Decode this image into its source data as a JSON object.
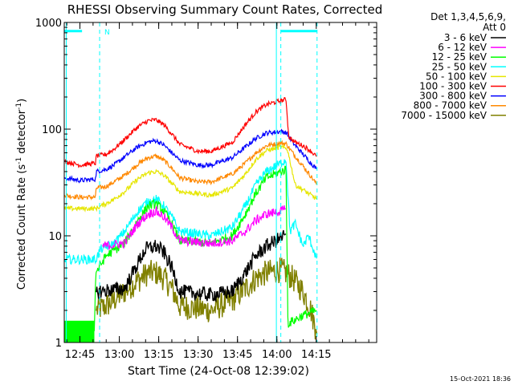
{
  "chart_data": {
    "type": "line",
    "title": "RHESSI Observing Summary Count Rates, Corrected",
    "xlabel": "Start Time (24-Oct-08 12:39:02)",
    "ylabel_main": "Corrected Count Rate (s",
    "ylabel_sup1": "-1",
    "ylabel_mid": " detector",
    "ylabel_sup2": "-1",
    "ylabel_end": ")",
    "yscale": "log",
    "ylim": [
      1,
      1000
    ],
    "xlim_min": [
      39.03,
      158
    ],
    "y_ticks": [
      {
        "value": 1,
        "label": "1"
      },
      {
        "value": 10,
        "label": "10"
      },
      {
        "value": 100,
        "label": "100"
      },
      {
        "value": 1000,
        "label": "1000"
      }
    ],
    "x_ticks": [
      {
        "value": 45,
        "label": "12:45"
      },
      {
        "value": 60,
        "label": "13:00"
      },
      {
        "value": 75,
        "label": "13:15"
      },
      {
        "value": 90,
        "label": "13:30"
      },
      {
        "value": 105,
        "label": "13:45"
      },
      {
        "value": 120,
        "label": "14:00"
      },
      {
        "value": 135,
        "label": "14:15"
      }
    ],
    "legend_header": [
      "Det 1,3,4,5,6,9,",
      "Att 0"
    ],
    "legend_position": "right",
    "footer_stamp": "15-Oct-2021 18:36",
    "night_marker": "N",
    "night_level": 830,
    "night_intervals": [
      [
        39.03,
        45.8
      ],
      [
        121.5,
        135.3
      ]
    ],
    "dashed_time_markers": [
      52.5,
      121.5,
      135.3
    ],
    "solid_time_markers": [
      39.8,
      119.8
    ],
    "series": [
      {
        "name": "3 - 6 keV",
        "color": "#000000",
        "points": [
          [
            51.0,
            3.0
          ],
          [
            62,
            3.2
          ],
          [
            67,
            5.5
          ],
          [
            70,
            7.5
          ],
          [
            74,
            8.0
          ],
          [
            77,
            7.0
          ],
          [
            80,
            5.0
          ],
          [
            83,
            3.0
          ],
          [
            95,
            2.8
          ],
          [
            103,
            3.0
          ],
          [
            108,
            4.5
          ],
          [
            112,
            6.5
          ],
          [
            116,
            8.0
          ],
          [
            121.5,
            9.5
          ],
          [
            123.5,
            10.5
          ]
        ]
      },
      {
        "name": "6 - 12 keV",
        "color": "#ff00ff",
        "points": [
          [
            53.5,
            8.0
          ],
          [
            62,
            8.5
          ],
          [
            67,
            13
          ],
          [
            71,
            16
          ],
          [
            74,
            17
          ],
          [
            77,
            15
          ],
          [
            80,
            12
          ],
          [
            83,
            9
          ],
          [
            95,
            8.5
          ],
          [
            103,
            9
          ],
          [
            108,
            11
          ],
          [
            112,
            14
          ],
          [
            116,
            16
          ],
          [
            121.5,
            17
          ],
          [
            123.5,
            18
          ]
        ]
      },
      {
        "name": "12 - 25 keV",
        "color": "#00ff00",
        "points": [
          [
            39.03,
            1.25
          ],
          [
            49,
            1.25
          ],
          [
            50.5,
            1.25
          ],
          [
            51,
            4.5
          ],
          [
            55,
            6.5
          ],
          [
            62,
            8.5
          ],
          [
            67,
            14
          ],
          [
            71,
            19
          ],
          [
            74,
            20
          ],
          [
            77,
            17
          ],
          [
            80,
            13
          ],
          [
            83,
            9
          ],
          [
            95,
            8.5
          ],
          [
            103,
            10
          ],
          [
            108,
            16
          ],
          [
            112,
            25
          ],
          [
            116,
            35
          ],
          [
            121.5,
            40
          ],
          [
            123.5,
            42
          ],
          [
            124.2,
            1.5
          ],
          [
            130,
            1.8
          ],
          [
            135.3,
            2.0
          ]
        ]
      },
      {
        "name": "25 - 50 keV",
        "color": "#00ffff",
        "points": [
          [
            39.03,
            6.0
          ],
          [
            51,
            6.0
          ],
          [
            53,
            7.5
          ],
          [
            58,
            8.5
          ],
          [
            62,
            11
          ],
          [
            67,
            17
          ],
          [
            71,
            21
          ],
          [
            74,
            22
          ],
          [
            77,
            19
          ],
          [
            80,
            15
          ],
          [
            83,
            11
          ],
          [
            95,
            10
          ],
          [
            103,
            12
          ],
          [
            108,
            19
          ],
          [
            112,
            30
          ],
          [
            116,
            40
          ],
          [
            121.5,
            48
          ],
          [
            123.5,
            52
          ],
          [
            125,
            11
          ],
          [
            127,
            13
          ],
          [
            130,
            8
          ],
          [
            132,
            10
          ],
          [
            135.3,
            6.0
          ]
        ]
      },
      {
        "name": "50 - 100 keV",
        "color": "#e6e600",
        "points": [
          [
            39.03,
            18
          ],
          [
            45,
            18
          ],
          [
            51,
            18
          ],
          [
            53,
            19
          ],
          [
            58,
            22
          ],
          [
            62,
            26
          ],
          [
            67,
            34
          ],
          [
            71,
            39
          ],
          [
            74,
            40
          ],
          [
            77,
            37
          ],
          [
            80,
            31
          ],
          [
            83,
            26
          ],
          [
            95,
            24
          ],
          [
            103,
            28
          ],
          [
            108,
            38
          ],
          [
            112,
            52
          ],
          [
            116,
            63
          ],
          [
            121.5,
            68
          ],
          [
            124,
            65
          ],
          [
            127,
            30
          ],
          [
            130,
            27
          ],
          [
            133,
            24
          ],
          [
            135.3,
            22
          ]
        ]
      },
      {
        "name": "100 - 300 keV",
        "color": "#ff0000",
        "points": [
          [
            39.03,
            50
          ],
          [
            45,
            46
          ],
          [
            51,
            48
          ],
          [
            51.2,
            56
          ],
          [
            55,
            58
          ],
          [
            58,
            65
          ],
          [
            62,
            80
          ],
          [
            67,
            105
          ],
          [
            71,
            120
          ],
          [
            74,
            122
          ],
          [
            77,
            110
          ],
          [
            80,
            90
          ],
          [
            83,
            72
          ],
          [
            90,
            62
          ],
          [
            95,
            62
          ],
          [
            103,
            75
          ],
          [
            108,
            110
          ],
          [
            112,
            145
          ],
          [
            116,
            170
          ],
          [
            121.5,
            185
          ],
          [
            123.5,
            190
          ],
          [
            124.5,
            85
          ],
          [
            127,
            75
          ],
          [
            130,
            70
          ],
          [
            133,
            62
          ],
          [
            135.3,
            55
          ]
        ]
      },
      {
        "name": "300 - 800 keV",
        "color": "#0000ff",
        "points": [
          [
            39.03,
            35
          ],
          [
            45,
            33
          ],
          [
            51,
            34
          ],
          [
            51.2,
            40
          ],
          [
            55,
            42
          ],
          [
            58,
            46
          ],
          [
            62,
            55
          ],
          [
            67,
            68
          ],
          [
            71,
            76
          ],
          [
            74,
            78
          ],
          [
            77,
            71
          ],
          [
            80,
            60
          ],
          [
            83,
            51
          ],
          [
            90,
            46
          ],
          [
            95,
            46
          ],
          [
            103,
            54
          ],
          [
            108,
            68
          ],
          [
            112,
            82
          ],
          [
            116,
            92
          ],
          [
            121.5,
            95
          ],
          [
            123.5,
            93
          ],
          [
            126,
            75
          ],
          [
            130,
            58
          ],
          [
            133,
            48
          ],
          [
            135.3,
            42
          ]
        ]
      },
      {
        "name": "800 - 7000 keV",
        "color": "#ff8800",
        "points": [
          [
            39.03,
            24
          ],
          [
            45,
            23
          ],
          [
            51,
            23
          ],
          [
            51.2,
            28
          ],
          [
            55,
            29
          ],
          [
            58,
            32
          ],
          [
            62,
            37
          ],
          [
            67,
            47
          ],
          [
            71,
            54
          ],
          [
            74,
            56
          ],
          [
            77,
            51
          ],
          [
            80,
            43
          ],
          [
            83,
            35
          ],
          [
            90,
            32
          ],
          [
            95,
            32
          ],
          [
            103,
            38
          ],
          [
            108,
            48
          ],
          [
            112,
            60
          ],
          [
            116,
            70
          ],
          [
            121.5,
            74
          ],
          [
            123.5,
            73
          ],
          [
            126,
            60
          ],
          [
            130,
            45
          ],
          [
            133,
            36
          ],
          [
            135.3,
            30
          ]
        ]
      },
      {
        "name": "7000 - 15000 keV",
        "color": "#808000",
        "points": [
          [
            51,
            2.0
          ],
          [
            55,
            2.2
          ],
          [
            58,
            2.5
          ],
          [
            62,
            3.0
          ],
          [
            67,
            3.8
          ],
          [
            71,
            4.5
          ],
          [
            74,
            4.5
          ],
          [
            77,
            4.0
          ],
          [
            80,
            3.2
          ],
          [
            83,
            2.2
          ],
          [
            95,
            2.0
          ],
          [
            103,
            2.5
          ],
          [
            108,
            3.2
          ],
          [
            112,
            4.0
          ],
          [
            116,
            4.5
          ],
          [
            121.5,
            4.8
          ],
          [
            123.5,
            4.5
          ],
          [
            126,
            4.0
          ],
          [
            130,
            3.0
          ],
          [
            133,
            2.0
          ],
          [
            135.3,
            1.2
          ]
        ]
      }
    ]
  }
}
